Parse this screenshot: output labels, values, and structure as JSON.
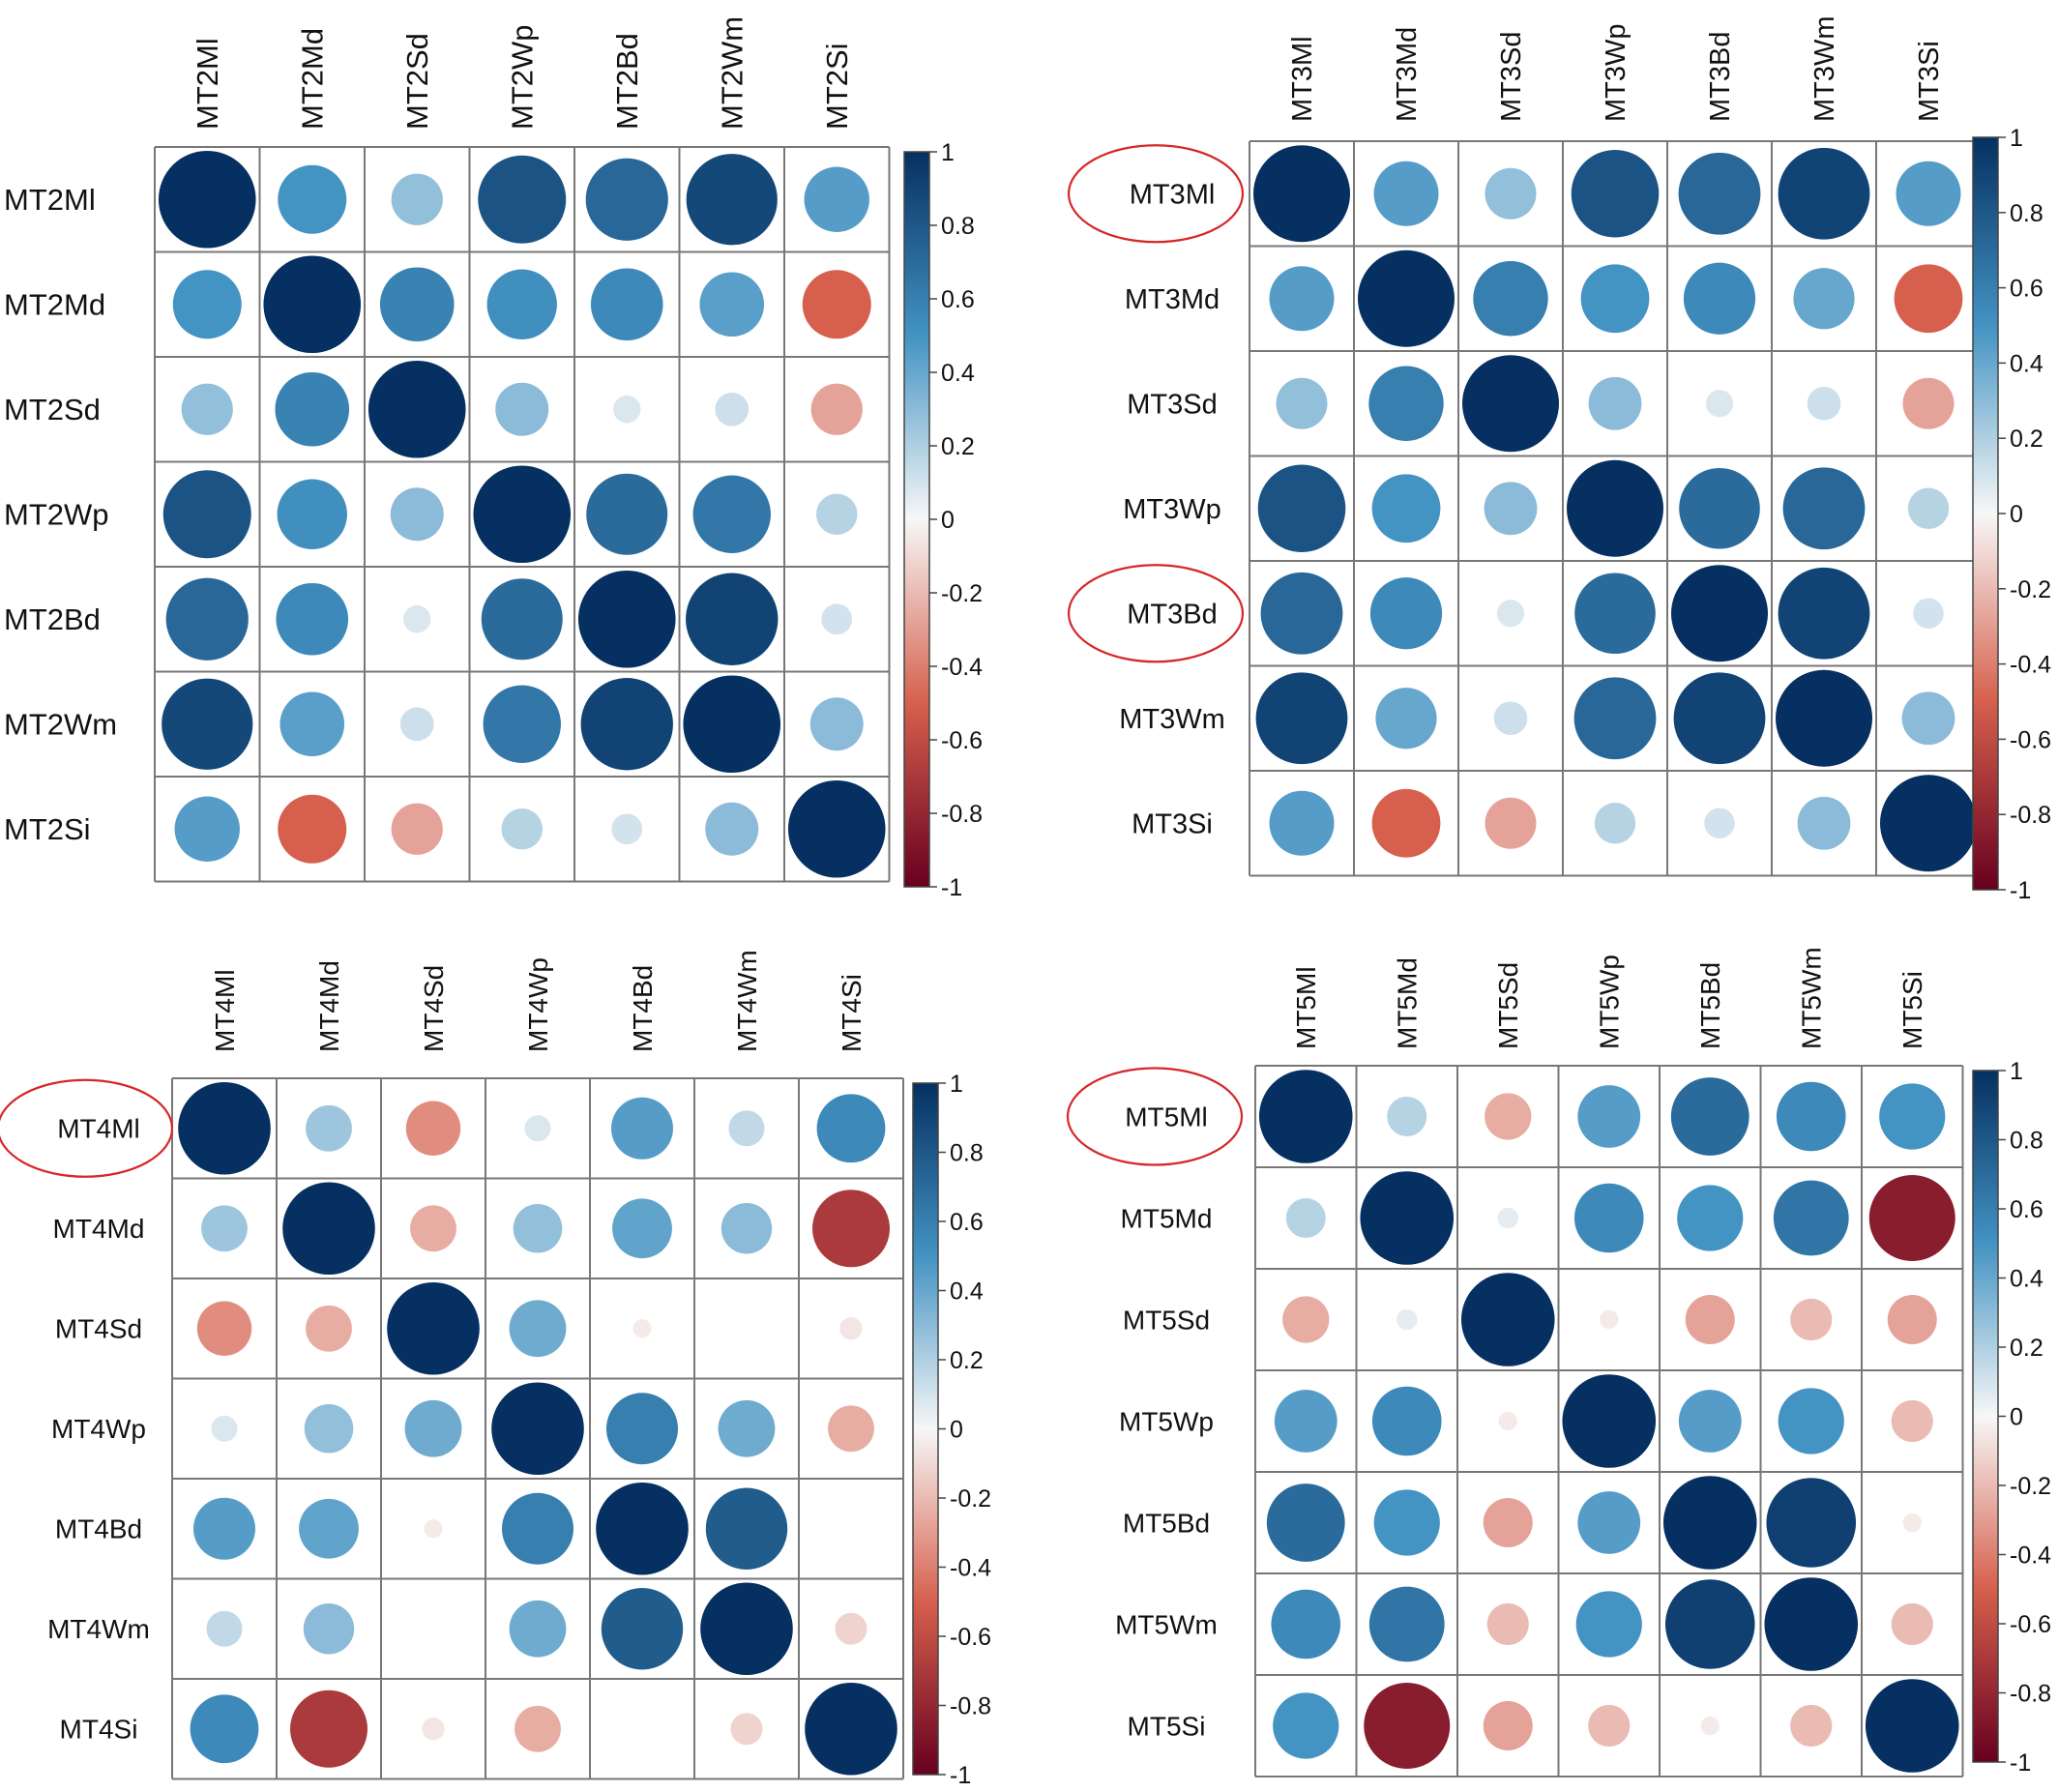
{
  "colorbar": {
    "ticks": [
      "1",
      "0.8",
      "0.6",
      "0.4",
      "0.2",
      "0",
      "-0.2",
      "-0.4",
      "-0.6",
      "-0.8",
      "-1"
    ],
    "range": [
      -1,
      1
    ],
    "colors": {
      "neg_end": "#67001f",
      "neg_mid": "#d6604d",
      "neutral": "#f7f7f7",
      "pos_mid": "#4393c3",
      "pos_end": "#053061"
    }
  },
  "chart_data": [
    {
      "type": "heatmap",
      "labels": [
        "MT2Ml",
        "MT2Md",
        "MT2Sd",
        "MT2Wp",
        "MT2Bd",
        "MT2Wm",
        "MT2Si"
      ],
      "highlighted": [],
      "matrix": [
        [
          1.0,
          0.5,
          0.28,
          0.82,
          0.72,
          0.88,
          0.45
        ],
        [
          0.5,
          1.0,
          0.58,
          0.52,
          0.55,
          0.44,
          -0.5
        ],
        [
          0.28,
          0.58,
          1.0,
          0.3,
          0.08,
          0.12,
          -0.28
        ],
        [
          0.82,
          0.52,
          0.3,
          1.0,
          0.7,
          0.64,
          0.18
        ],
        [
          0.72,
          0.55,
          0.08,
          0.7,
          1.0,
          0.9,
          0.1
        ],
        [
          0.88,
          0.44,
          0.12,
          0.64,
          0.9,
          1.0,
          0.3
        ],
        [
          0.45,
          -0.5,
          -0.28,
          0.18,
          0.1,
          0.3,
          1.0
        ]
      ]
    },
    {
      "type": "heatmap",
      "labels": [
        "MT3Ml",
        "MT3Md",
        "MT3Sd",
        "MT3Wp",
        "MT3Bd",
        "MT3Wm",
        "MT3Si"
      ],
      "highlighted": [
        0,
        4
      ],
      "matrix": [
        [
          1.0,
          0.45,
          0.28,
          0.82,
          0.72,
          0.9,
          0.45
        ],
        [
          0.45,
          1.0,
          0.6,
          0.5,
          0.55,
          0.4,
          -0.5
        ],
        [
          0.28,
          0.6,
          1.0,
          0.3,
          0.08,
          0.12,
          -0.28
        ],
        [
          0.82,
          0.5,
          0.3,
          1.0,
          0.7,
          0.72,
          0.18
        ],
        [
          0.72,
          0.55,
          0.08,
          0.7,
          1.0,
          0.9,
          0.1
        ],
        [
          0.9,
          0.4,
          0.12,
          0.72,
          0.9,
          1.0,
          0.3
        ],
        [
          0.45,
          -0.5,
          -0.28,
          0.18,
          0.1,
          0.3,
          1.0
        ]
      ]
    },
    {
      "type": "heatmap",
      "labels": [
        "MT4Ml",
        "MT4Md",
        "MT4Sd",
        "MT4Wp",
        "MT4Bd",
        "MT4Wm",
        "MT4Si"
      ],
      "highlighted": [
        0
      ],
      "matrix": [
        [
          1.0,
          0.25,
          -0.35,
          0.08,
          0.45,
          0.15,
          0.55
        ],
        [
          0.25,
          1.0,
          -0.25,
          0.28,
          0.42,
          0.3,
          -0.7
        ],
        [
          -0.35,
          -0.25,
          1.0,
          0.38,
          -0.04,
          0.0,
          -0.06
        ],
        [
          0.08,
          0.28,
          0.38,
          1.0,
          0.6,
          0.38,
          -0.25
        ],
        [
          0.45,
          0.42,
          -0.04,
          0.6,
          1.0,
          0.78,
          0.0
        ],
        [
          0.15,
          0.3,
          0.0,
          0.38,
          0.78,
          1.0,
          -0.12
        ],
        [
          0.55,
          -0.7,
          -0.06,
          -0.25,
          0.0,
          -0.12,
          1.0
        ]
      ]
    },
    {
      "type": "heatmap",
      "labels": [
        "MT5Ml",
        "MT5Md",
        "MT5Sd",
        "MT5Wp",
        "MT5Bd",
        "MT5Wm",
        "MT5Si"
      ],
      "highlighted": [
        0
      ],
      "matrix": [
        [
          1.0,
          0.18,
          -0.25,
          0.45,
          0.7,
          0.55,
          0.5
        ],
        [
          0.18,
          1.0,
          0.05,
          0.55,
          0.5,
          0.65,
          -0.85
        ],
        [
          -0.25,
          0.05,
          1.0,
          -0.04,
          -0.28,
          -0.2,
          -0.28
        ],
        [
          0.45,
          0.55,
          -0.04,
          1.0,
          0.45,
          0.5,
          -0.2
        ],
        [
          0.7,
          0.5,
          -0.28,
          0.45,
          1.0,
          0.92,
          -0.04
        ],
        [
          0.55,
          0.65,
          -0.2,
          0.5,
          0.92,
          1.0,
          -0.2
        ],
        [
          0.5,
          -0.85,
          -0.28,
          -0.2,
          -0.04,
          -0.2,
          1.0
        ]
      ]
    }
  ]
}
